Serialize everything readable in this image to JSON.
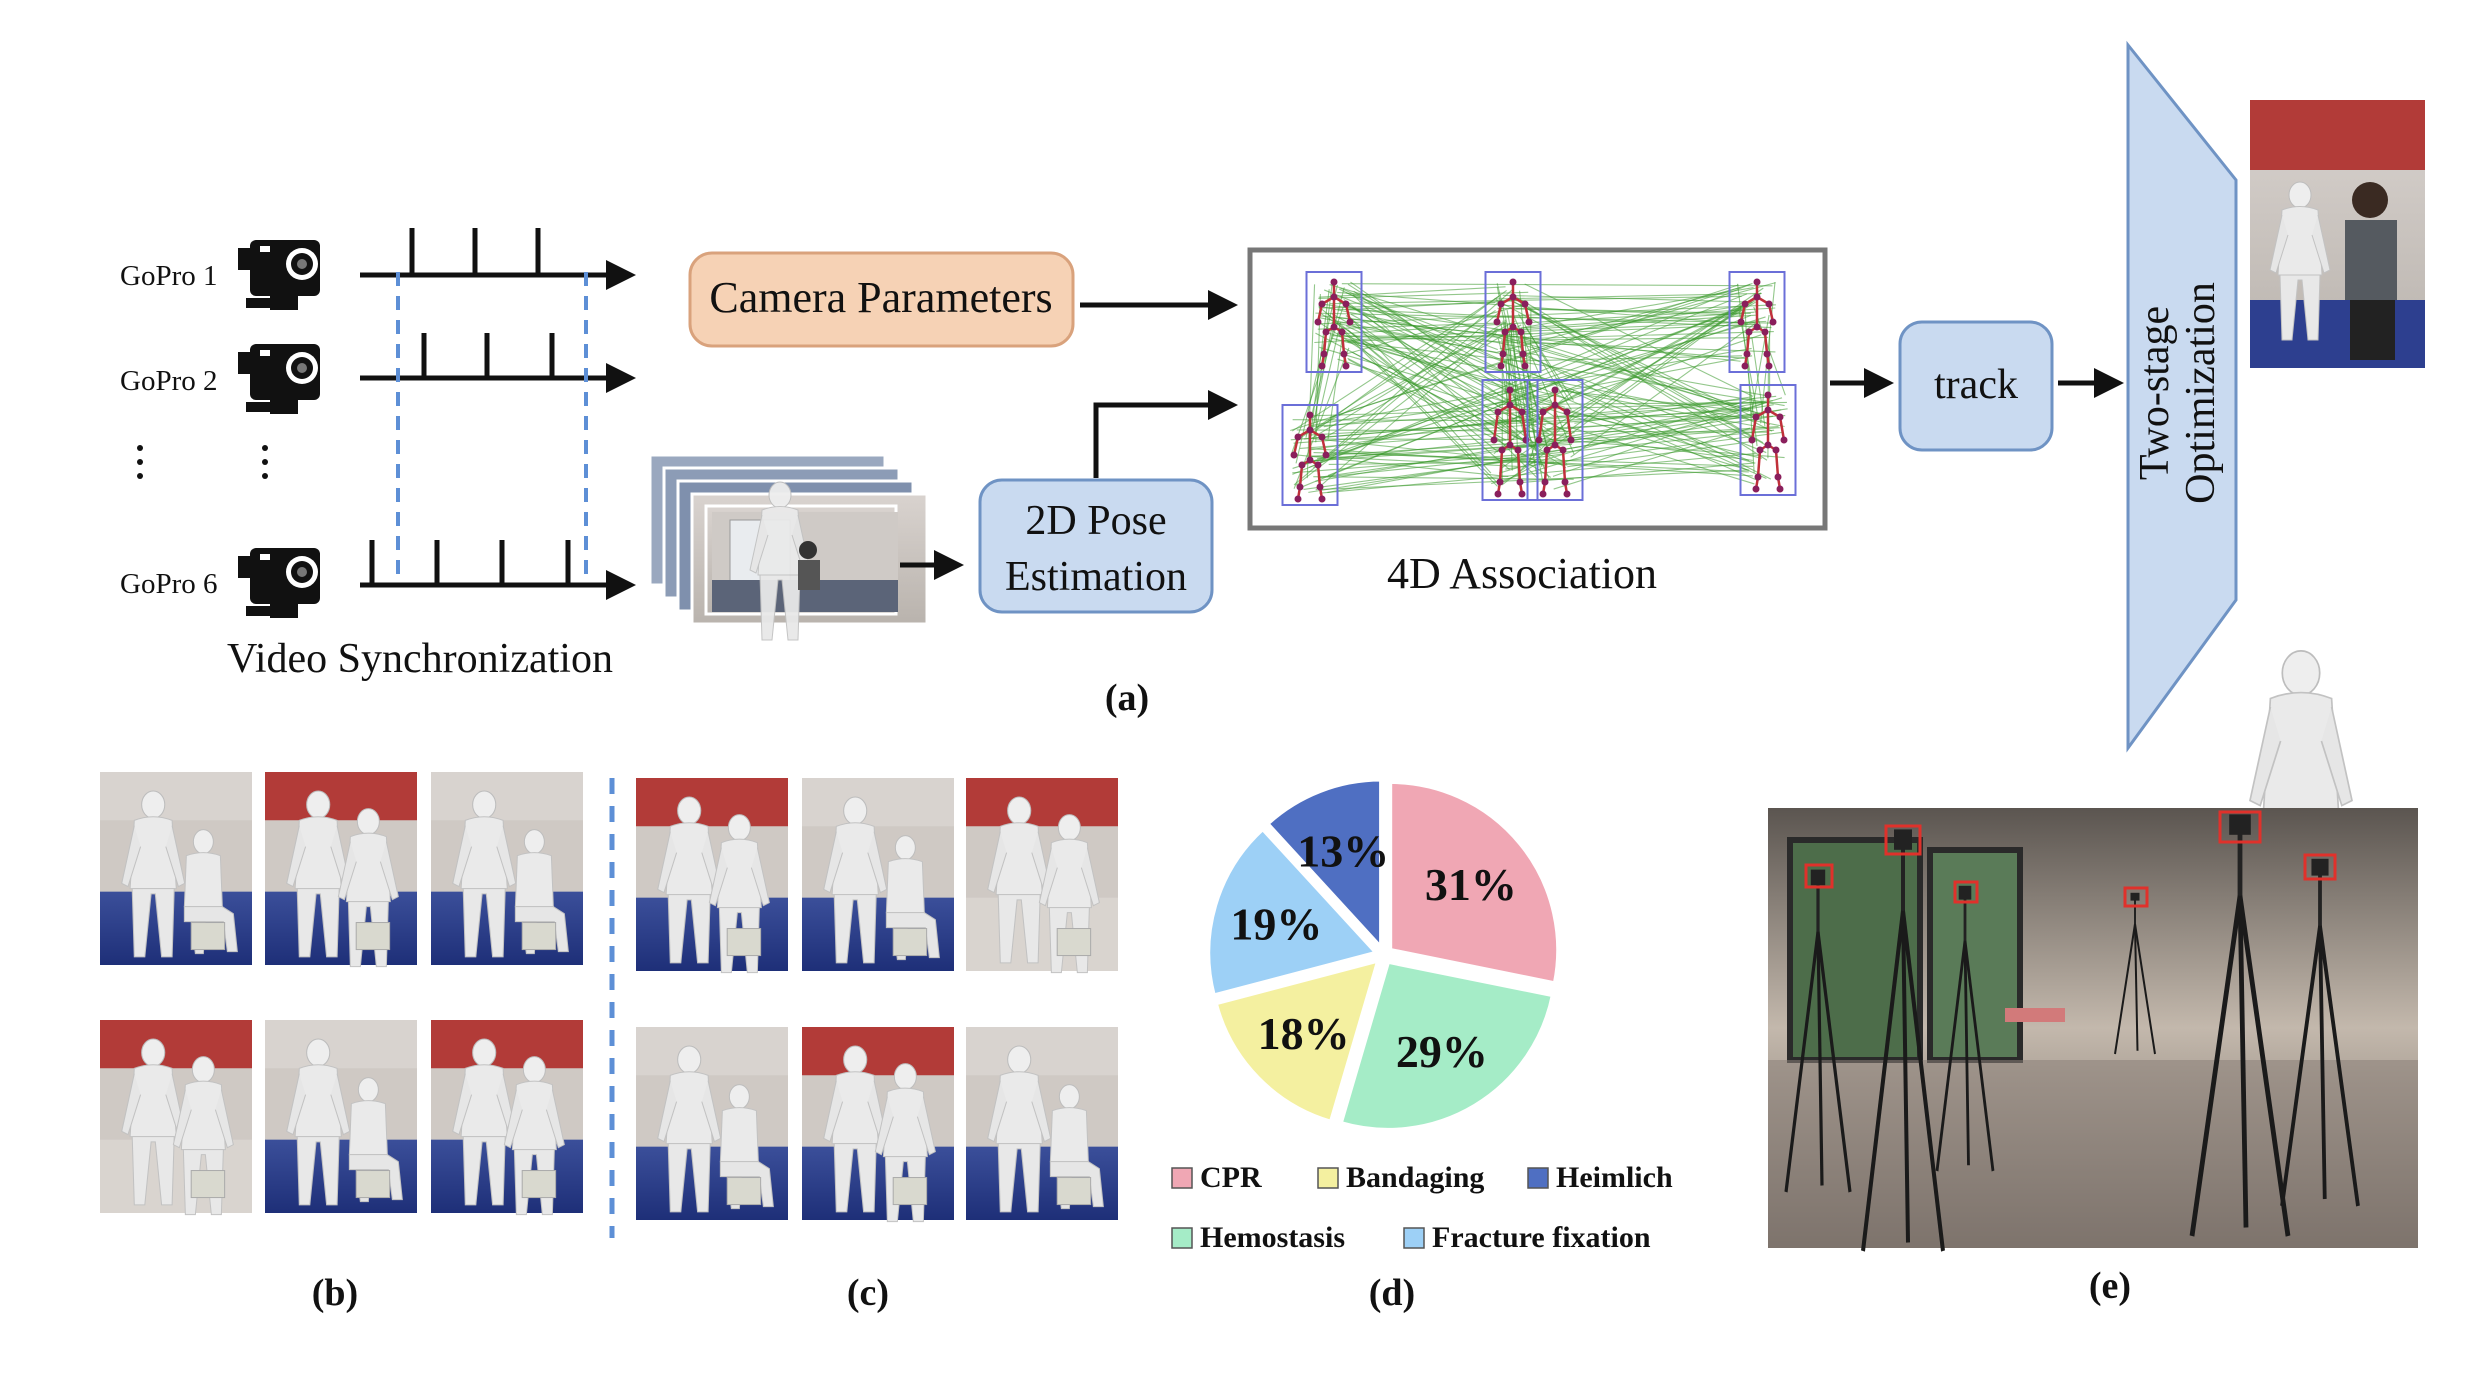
{
  "panel_a": {
    "cameras": [
      {
        "label": "GoPro 1"
      },
      {
        "label": "GoPro 2"
      },
      {
        "label": "GoPro 6"
      }
    ],
    "sync_title": "Video Synchronization",
    "camera_params": "Camera Parameters",
    "pose_estimation_line1": "2D Pose",
    "pose_estimation_line2": "Estimation",
    "association_title": "4D Association",
    "track": "track",
    "optimization_line1": "Two-stage",
    "optimization_line2": "Optimization",
    "caption": "(a)"
  },
  "panel_b": {
    "caption": "(b)"
  },
  "panel_c": {
    "caption": "(c)"
  },
  "panel_d": {
    "caption": "(d)"
  },
  "panel_e": {
    "caption": "(e)"
  },
  "colors": {
    "camera_params_fill": "#f6d2b5",
    "camera_params_stroke": "#d9a27c",
    "blue_box_fill": "#c9daf0",
    "blue_box_stroke": "#6f93c4",
    "edge_green": "#3c9a2e",
    "skeleton_red": "#c0303a",
    "bbox_blue": "#6b6fd8"
  },
  "chart_data": {
    "type": "pie",
    "categories": [
      "CPR",
      "Hemostasis",
      "Bandaging",
      "Fracture fixation",
      "Heimlich"
    ],
    "values": [
      31,
      29,
      18,
      19,
      13
    ],
    "labels": [
      "31%",
      "29%",
      "18%",
      "19%",
      "13%"
    ],
    "colors": [
      "#f0a7b4",
      "#a5ecc7",
      "#f4f0a0",
      "#9dd0f6",
      "#4f6fc2"
    ],
    "legend": [
      "CPR",
      "Bandaging",
      "Heimlich",
      "Hemostasis",
      "Fracture fixation"
    ],
    "legend_colors": [
      "#f0a7b4",
      "#f4f0a0",
      "#4f6fc2",
      "#a5ecc7",
      "#9dd0f6"
    ],
    "legend_position": "bottom"
  }
}
